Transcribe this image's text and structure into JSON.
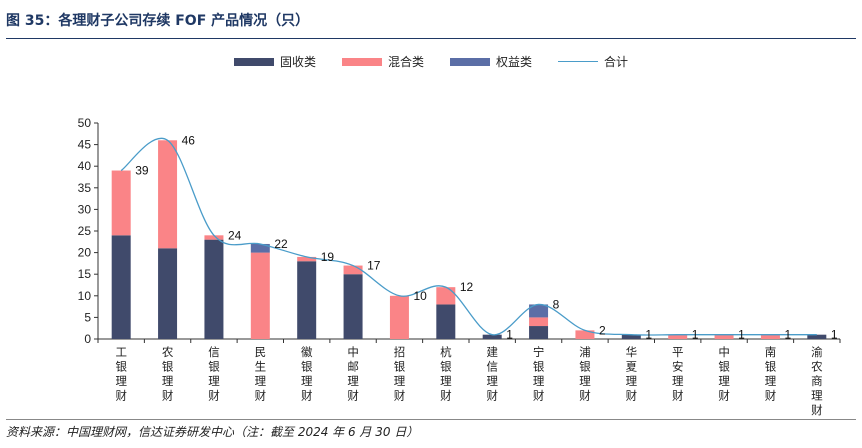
{
  "figure": {
    "title": "图 35：各理财子公司存续 FOF 产品情况（只）",
    "source": "资料来源：中国理财网，信达证券研发中心（注：截至 2024 年 6 月 30 日）"
  },
  "colors": {
    "fixed_income": "#404a6b",
    "mixed": "#fa8487",
    "equity": "#5b6ea6",
    "total_line": "#4a9cc9",
    "title": "#1f3864"
  },
  "chart_data": {
    "type": "bar",
    "stacked": true,
    "categories": [
      "工银理财",
      "农银理财",
      "信银理财",
      "民生理财",
      "徽银理财",
      "中邮理财",
      "招银理财",
      "杭银理财",
      "建信理财",
      "宁银理财",
      "浦银理财",
      "华夏理财",
      "平安理财",
      "中银理财",
      "南银理财",
      "渝农商理财"
    ],
    "series": [
      {
        "name": "固收类",
        "values": [
          24,
          21,
          23,
          0,
          18,
          15,
          0,
          8,
          1,
          3,
          0,
          1,
          0,
          0,
          0,
          1
        ]
      },
      {
        "name": "混合类",
        "values": [
          15,
          25,
          1,
          20,
          1,
          2,
          10,
          4,
          0,
          2,
          2,
          0,
          1,
          1,
          1,
          0
        ]
      },
      {
        "name": "权益类",
        "values": [
          0,
          0,
          0,
          2,
          0,
          0,
          0,
          0,
          0,
          3,
          0,
          0,
          0,
          0,
          0,
          0
        ]
      }
    ],
    "line": {
      "name": "合计",
      "values": [
        39,
        46,
        24,
        22,
        19,
        17,
        10,
        12,
        1,
        8,
        2,
        1,
        1,
        1,
        1,
        1
      ]
    },
    "ylim": [
      0,
      50
    ],
    "yticks": [
      0,
      5,
      10,
      15,
      20,
      25,
      30,
      35,
      40,
      45,
      50
    ],
    "legend_position": "top-center",
    "grid": false
  }
}
